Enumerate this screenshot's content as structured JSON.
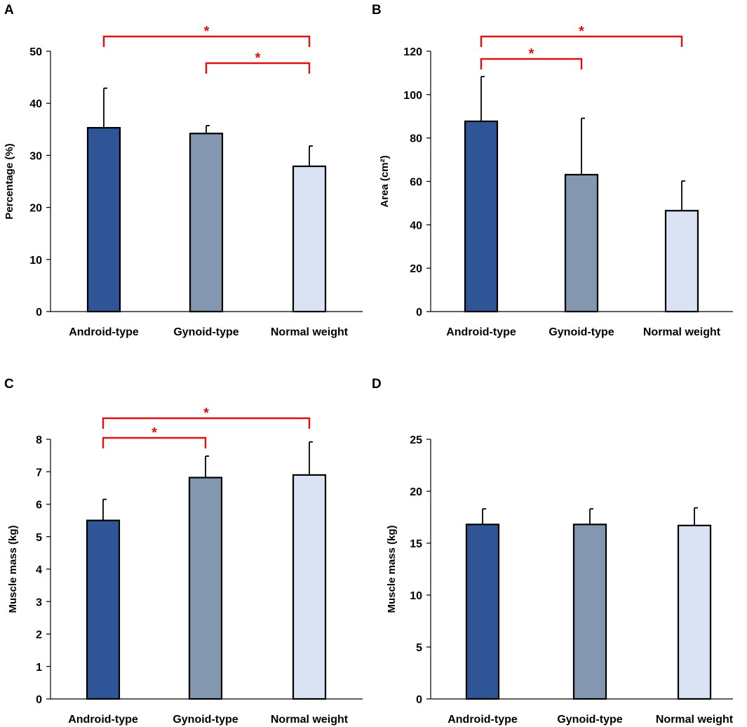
{
  "colors": {
    "android": "#2f5597",
    "gynoid": "#8497b0",
    "normal": "#dae3f3",
    "significance": "#e01010",
    "axis": "#000000"
  },
  "chart_data": [
    {
      "panel": "A",
      "type": "bar",
      "categories": [
        "Android-type",
        "Gynoid-type",
        "Normal weight"
      ],
      "values": [
        35.3,
        34.2,
        27.9
      ],
      "error": [
        7.6,
        1.5,
        3.9
      ],
      "ylabel": "Percentage (%)",
      "ylim": [
        0,
        50
      ],
      "yticks": [
        0,
        10,
        20,
        30,
        40,
        50
      ],
      "significance": [
        {
          "from": 0,
          "to": 2,
          "level": 0,
          "label": "*"
        },
        {
          "from": 1,
          "to": 2,
          "level": 1,
          "label": "*"
        }
      ]
    },
    {
      "panel": "B",
      "type": "bar",
      "categories": [
        "Android-type",
        "Gynoid-type",
        "Normal weight"
      ],
      "values": [
        87.7,
        63.1,
        46.5
      ],
      "error": [
        20.6,
        26.0,
        13.7
      ],
      "ylabel": "Area (cm²)",
      "ylim": [
        0,
        120
      ],
      "yticks": [
        0,
        20,
        40,
        60,
        80,
        100,
        120
      ],
      "significance": [
        {
          "from": 0,
          "to": 2,
          "level": 0,
          "label": "*"
        },
        {
          "from": 0,
          "to": 1,
          "level": 1,
          "label": "*"
        }
      ]
    },
    {
      "panel": "C",
      "type": "bar",
      "categories": [
        "Android-type",
        "Gynoid-type",
        "Normal weight"
      ],
      "values": [
        5.5,
        6.82,
        6.9
      ],
      "error": [
        0.65,
        0.66,
        1.02
      ],
      "ylabel": "Muscle mass (kg)",
      "ylim": [
        0,
        8
      ],
      "yticks": [
        0,
        1,
        2,
        3,
        4,
        5,
        6,
        7,
        8
      ],
      "significance": [
        {
          "from": 0,
          "to": 2,
          "level": 0,
          "label": "*"
        },
        {
          "from": 0,
          "to": 1,
          "level": 1,
          "label": "*"
        }
      ]
    },
    {
      "panel": "D",
      "type": "bar",
      "categories": [
        "Android-type",
        "Gynoid-type",
        "Normal weight"
      ],
      "values": [
        16.8,
        16.8,
        16.7
      ],
      "error": [
        1.5,
        1.5,
        1.7
      ],
      "ylabel": "Muscle mass (kg)",
      "ylim": [
        0,
        25
      ],
      "yticks": [
        0,
        5,
        10,
        15,
        20,
        25
      ],
      "significance": []
    }
  ]
}
